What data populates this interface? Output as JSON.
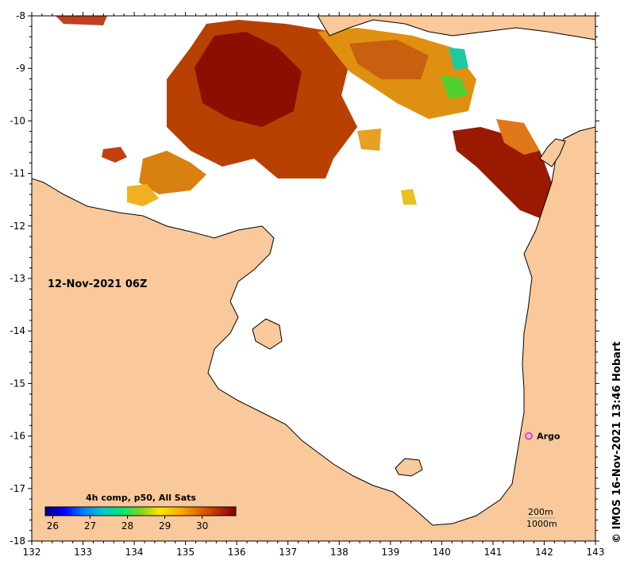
{
  "map": {
    "timestamp": "12-Nov-2021 06Z",
    "x_ticks": [
      "132",
      "133",
      "134",
      "135",
      "136",
      "137",
      "138",
      "139",
      "140",
      "141",
      "142",
      "143"
    ],
    "y_ticks": [
      "-8",
      "-9",
      "-10",
      "-11",
      "-12",
      "-13",
      "-14",
      "-15",
      "-16",
      "-17",
      "-18"
    ],
    "lon_range": [
      132,
      143
    ],
    "lat_range": [
      -18,
      -8
    ],
    "land_color": "#f9c99b",
    "sea_no_data_color": "#ffffff",
    "argo": {
      "label": "Argo",
      "lon": 141.7,
      "lat": -16.0,
      "marker_color": "#e040e0"
    },
    "depth_contours": [
      "200m",
      "1000m"
    ],
    "colorbar": {
      "title": "4h comp, p50, All Sats",
      "tick_labels": [
        "26",
        "27",
        "28",
        "29",
        "30"
      ],
      "range": [
        25.8,
        30.9
      ],
      "stops": [
        "#00007f",
        "#0000ff",
        "#0080ff",
        "#00c8c8",
        "#00e676",
        "#7ed321",
        "#ffe600",
        "#ffb000",
        "#e07000",
        "#c03000",
        "#7f0000"
      ]
    },
    "credit": "© IMOS 16-Nov-2021 13:46 Hobart"
  }
}
